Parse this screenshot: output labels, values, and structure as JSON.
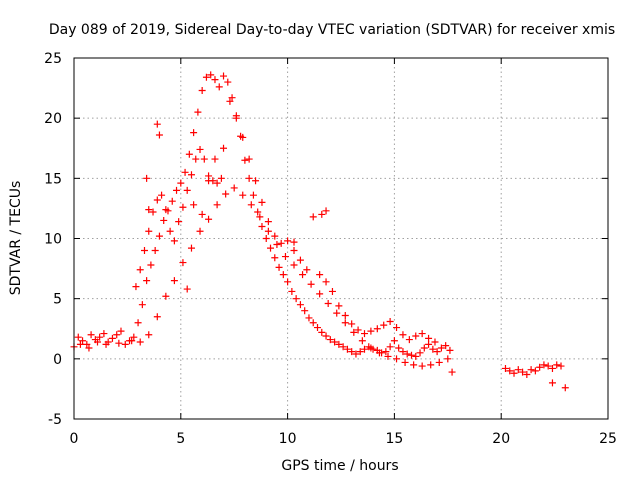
{
  "chart_data": {
    "type": "scatter",
    "title": "Day 089 of 2019, Sidereal Day-to-day VTEC variation (SDTVAR) for receiver xmis",
    "xlabel": "GPS time / hours",
    "ylabel": "SDTVAR / TECUs",
    "xlim": [
      0,
      25
    ],
    "ylim": [
      -5,
      25
    ],
    "xticks": [
      0,
      5,
      10,
      15,
      20,
      25
    ],
    "yticks": [
      -5,
      0,
      5,
      10,
      15,
      20,
      25
    ],
    "grid": true,
    "marker": "+",
    "color": "#ff0000",
    "series": [
      {
        "name": "SDTVAR",
        "x": [
          0.0,
          0.2,
          0.4,
          0.6,
          0.8,
          1.0,
          1.2,
          1.4,
          1.6,
          1.8,
          2.0,
          2.2,
          2.4,
          2.6,
          2.8,
          3.0,
          3.2,
          3.4,
          3.6,
          3.8,
          4.0,
          4.2,
          4.4,
          4.6,
          4.8,
          5.0,
          5.2,
          5.4,
          5.6,
          5.8,
          6.0,
          6.2,
          6.4,
          6.6,
          6.8,
          7.0,
          7.2,
          7.4,
          7.6,
          7.8,
          8.0,
          8.2,
          8.4,
          8.6,
          8.8,
          9.0,
          9.2,
          9.4,
          9.6,
          9.8,
          10.0,
          10.2,
          10.4,
          10.6,
          10.8,
          11.0,
          11.2,
          11.4,
          11.6,
          11.8,
          12.0,
          12.2,
          12.4,
          12.6,
          12.8,
          13.0,
          13.2,
          13.4,
          13.6,
          13.8,
          14.0,
          14.2,
          14.4,
          14.6,
          14.8,
          15.0,
          15.2,
          15.4,
          15.6,
          15.8,
          16.0,
          16.2,
          16.4,
          16.6,
          16.8,
          17.0,
          17.2,
          17.4,
          17.6,
          20.2,
          20.4,
          20.6,
          20.8,
          21.0,
          21.2,
          21.4,
          21.6,
          21.8,
          22.0,
          22.2,
          22.4,
          22.6,
          22.8,
          0.3,
          0.7,
          1.1,
          1.5,
          2.1,
          2.7,
          3.1,
          3.5,
          3.9,
          4.3,
          4.7,
          5.1,
          5.5,
          5.9,
          6.3,
          6.7,
          7.1,
          7.5,
          7.9,
          8.3,
          8.7,
          9.1,
          9.5,
          9.9,
          10.3,
          10.7,
          11.1,
          11.5,
          11.9,
          12.3,
          12.7,
          13.1,
          13.5,
          13.9,
          14.3,
          14.7,
          15.1,
          15.5,
          15.9,
          16.3,
          16.7,
          17.1,
          17.5,
          2.9,
          3.1,
          3.3,
          3.5,
          3.7,
          3.9,
          4.1,
          4.3,
          4.5,
          4.7,
          4.9,
          5.1,
          5.3,
          5.5,
          5.7,
          5.9,
          6.1,
          6.3,
          6.5,
          6.7,
          6.9,
          7.3,
          7.6,
          7.9,
          8.2,
          8.5,
          8.8,
          9.1,
          9.4,
          9.7,
          10.0,
          10.3,
          10.6,
          10.9,
          11.2,
          11.5,
          11.8,
          12.1,
          12.4,
          12.7,
          13.0,
          13.3,
          13.6,
          13.9,
          14.2,
          14.5,
          14.8,
          15.1,
          15.4,
          15.7,
          16.0,
          16.3,
          16.6,
          16.9,
          3.4,
          3.5,
          3.9,
          4.0,
          5.3,
          5.6,
          6.0,
          6.3,
          6.6,
          7.0,
          10.3,
          11.6,
          11.8,
          17.7,
          22.4,
          23.0
        ],
        "y": [
          1.0,
          1.8,
          1.5,
          1.2,
          2.0,
          1.6,
          1.8,
          2.1,
          1.4,
          1.7,
          2.0,
          2.3,
          1.2,
          1.5,
          1.8,
          3.0,
          4.5,
          6.5,
          7.8,
          9.0,
          10.2,
          11.5,
          12.3,
          13.1,
          14.0,
          14.6,
          15.5,
          17.0,
          18.8,
          20.5,
          22.3,
          23.4,
          23.6,
          23.2,
          22.6,
          23.5,
          23.0,
          21.7,
          20.2,
          18.5,
          16.5,
          15.0,
          13.6,
          12.2,
          11.0,
          10.0,
          9.2,
          8.4,
          7.6,
          7.0,
          6.4,
          5.6,
          5.0,
          4.5,
          4.0,
          3.4,
          3.0,
          2.6,
          2.2,
          1.9,
          1.6,
          1.4,
          1.2,
          1.0,
          0.8,
          0.6,
          0.4,
          0.6,
          0.8,
          1.0,
          0.8,
          0.7,
          0.5,
          0.6,
          1.0,
          1.5,
          0.9,
          0.6,
          0.4,
          0.3,
          0.2,
          0.5,
          0.9,
          1.2,
          0.8,
          0.6,
          0.9,
          1.1,
          0.7,
          -0.8,
          -1.0,
          -1.2,
          -0.9,
          -1.1,
          -1.3,
          -0.9,
          -1.0,
          -0.7,
          -0.5,
          -0.6,
          -0.8,
          -0.5,
          -0.6,
          1.2,
          0.9,
          1.4,
          1.2,
          1.3,
          1.5,
          1.4,
          2.0,
          3.5,
          5.2,
          6.5,
          8.0,
          9.2,
          10.6,
          11.6,
          12.8,
          13.7,
          14.2,
          13.6,
          12.8,
          11.8,
          10.6,
          9.5,
          8.5,
          7.8,
          7.0,
          6.2,
          5.4,
          4.6,
          3.8,
          3.0,
          2.2,
          1.5,
          0.9,
          0.5,
          0.2,
          0.0,
          -0.3,
          -0.5,
          -0.6,
          -0.5,
          -0.3,
          0.0,
          6.0,
          7.4,
          9.0,
          10.6,
          12.2,
          13.2,
          13.6,
          12.4,
          10.6,
          9.8,
          11.4,
          12.6,
          14.0,
          15.3,
          16.6,
          17.4,
          16.6,
          15.2,
          14.8,
          14.6,
          15.0,
          21.4,
          20.0,
          18.4,
          16.6,
          14.8,
          13.0,
          11.4,
          10.2,
          9.6,
          9.8,
          9.0,
          8.2,
          7.4,
          11.8,
          7.0,
          6.4,
          5.6,
          4.4,
          3.6,
          2.9,
          2.4,
          2.1,
          2.3,
          2.5,
          2.8,
          3.1,
          2.6,
          2.0,
          1.6,
          1.9,
          2.1,
          1.7,
          1.4,
          15.0,
          12.4,
          19.5,
          18.6,
          5.8,
          12.8,
          12.0,
          14.8,
          16.6,
          17.5,
          9.7,
          12.0,
          12.3,
          -1.1,
          -2.0,
          -2.4
        ]
      }
    ]
  }
}
